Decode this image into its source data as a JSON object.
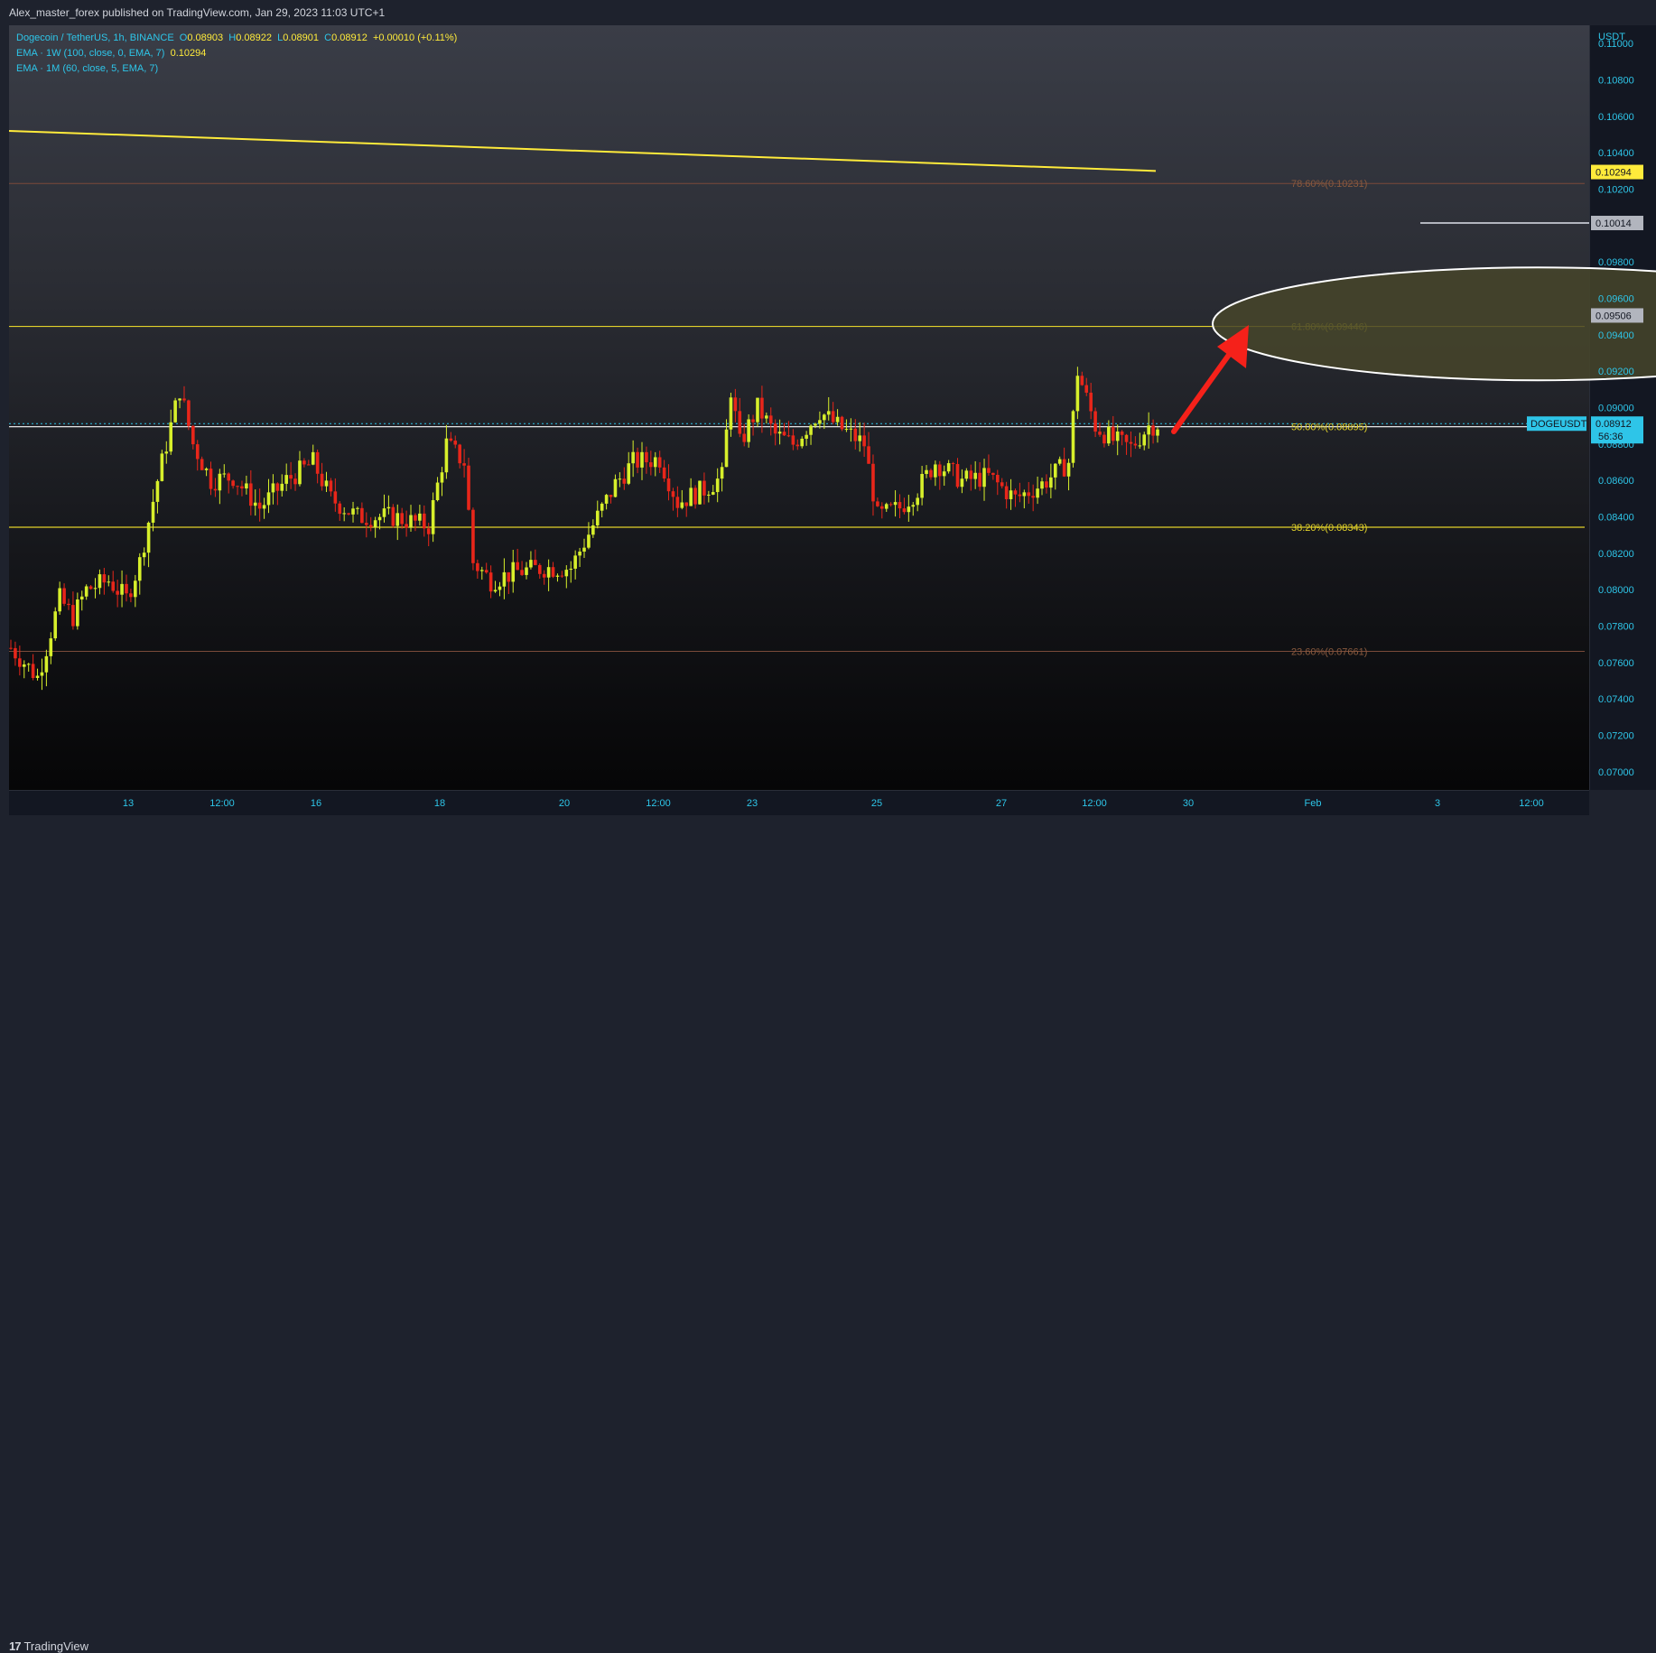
{
  "header": {
    "publisher_text": "Alex_master_forex published on TradingView.com, Jan 29, 2023 11:03 UTC+1"
  },
  "footer": {
    "logo_text": "TradingView",
    "logo_mark": "17"
  },
  "legend": {
    "symbol": "Dogecoin / TetherUS, 1h, BINANCE",
    "open_label": "O",
    "open": "0.08903",
    "high_label": "H",
    "high": "0.08922",
    "low_label": "L",
    "low": "0.08901",
    "close_label": "C",
    "close": "0.08912",
    "change": "+0.00010 (+0.11%)",
    "ema1_label": "EMA · 1W (100, close, 0, EMA, 7)",
    "ema1_value": "0.10294",
    "ema2_label": "EMA · 1M (60, close, 5, EMA, 7)"
  },
  "colors": {
    "up": "#d7ef2b",
    "down": "#e8261a",
    "fib_yellow": "#e2d22a",
    "fib_dim": "#7a4a3a",
    "ema_line": "#ffeb3b",
    "ellipse_fill": "#46452a",
    "arrow": "#f5211a",
    "axis_text": "#2ec5e8",
    "price_tag": "#2ec5e8"
  },
  "chart_data": {
    "type": "candlestick",
    "symbol": "DOGEUSDT",
    "ylim": [
      0.069,
      0.111
    ],
    "y_unit": "USDT",
    "y_ticks": [
      "0.11000",
      "0.10800",
      "0.10600",
      "0.10400",
      "0.10200",
      "0.09800",
      "0.09600",
      "0.09400",
      "0.09200",
      "0.09000",
      "0.08800",
      "0.08600",
      "0.08400",
      "0.08200",
      "0.08000",
      "0.07800",
      "0.07600",
      "0.07400",
      "0.07200",
      "0.07000"
    ],
    "x_ticks": [
      "13",
      "12:00",
      "16",
      "18",
      "20",
      "12:00",
      "23",
      "25",
      "27",
      "12:00",
      "30",
      "Feb",
      "3",
      "12:00"
    ],
    "fib_levels": [
      {
        "label": "78.60%(0.10231)",
        "value": 0.10231
      },
      {
        "label": "61.80%(0.09446)",
        "value": 0.09446
      },
      {
        "label": "50.00%(0.08895)",
        "value": 0.08895
      },
      {
        "label": "38.20%(0.08343)",
        "value": 0.08343
      },
      {
        "label": "23.60%(0.07661)",
        "value": 0.07661
      }
    ],
    "ema_1w_line": {
      "start_value": 0.1052,
      "end_value": 0.103
    },
    "horizontal_line": {
      "value": 0.10014
    },
    "target_zone": {
      "low": 0.0915,
      "high": 0.0977
    },
    "price_tags": [
      {
        "label": "0.10294",
        "value": 0.10294,
        "style": "yellow"
      },
      {
        "label": "0.10014",
        "value": 0.10014,
        "style": "gray"
      },
      {
        "label": "0.09506",
        "value": 0.09506,
        "style": "gray"
      },
      {
        "label": "0.08912",
        "value": 0.08912,
        "style": "blue"
      }
    ],
    "current": {
      "symbol_tag": "DOGEUSDT",
      "price": "0.08912",
      "countdown": "56:36"
    },
    "close_path": [
      {
        "t": 0,
        "close": 0.0768
      },
      {
        "t": 3,
        "close": 0.076
      },
      {
        "t": 6,
        "close": 0.0752
      },
      {
        "t": 8,
        "close": 0.0768
      },
      {
        "t": 11,
        "close": 0.0795
      },
      {
        "t": 14,
        "close": 0.0785
      },
      {
        "t": 17,
        "close": 0.08
      },
      {
        "t": 22,
        "close": 0.0805
      },
      {
        "t": 26,
        "close": 0.0795
      },
      {
        "t": 29,
        "close": 0.0815
      },
      {
        "t": 33,
        "close": 0.086
      },
      {
        "t": 36,
        "close": 0.089
      },
      {
        "t": 38,
        "close": 0.091
      },
      {
        "t": 41,
        "close": 0.088
      },
      {
        "t": 45,
        "close": 0.086
      },
      {
        "t": 50,
        "close": 0.0862
      },
      {
        "t": 56,
        "close": 0.0845
      },
      {
        "t": 62,
        "close": 0.086
      },
      {
        "t": 68,
        "close": 0.087
      },
      {
        "t": 72,
        "close": 0.085
      },
      {
        "t": 78,
        "close": 0.084
      },
      {
        "t": 86,
        "close": 0.084
      },
      {
        "t": 94,
        "close": 0.0835
      },
      {
        "t": 98,
        "close": 0.088
      },
      {
        "t": 102,
        "close": 0.087
      },
      {
        "t": 104,
        "close": 0.0815
      },
      {
        "t": 108,
        "close": 0.0805
      },
      {
        "t": 114,
        "close": 0.081
      },
      {
        "t": 120,
        "close": 0.0812
      },
      {
        "t": 126,
        "close": 0.0812
      },
      {
        "t": 132,
        "close": 0.084
      },
      {
        "t": 136,
        "close": 0.0858
      },
      {
        "t": 140,
        "close": 0.087
      },
      {
        "t": 146,
        "close": 0.0872
      },
      {
        "t": 150,
        "close": 0.0848
      },
      {
        "t": 156,
        "close": 0.0855
      },
      {
        "t": 160,
        "close": 0.0862
      },
      {
        "t": 162,
        "close": 0.091
      },
      {
        "t": 164,
        "close": 0.088
      },
      {
        "t": 168,
        "close": 0.09
      },
      {
        "t": 172,
        "close": 0.0885
      },
      {
        "t": 176,
        "close": 0.088
      },
      {
        "t": 182,
        "close": 0.0898
      },
      {
        "t": 186,
        "close": 0.089
      },
      {
        "t": 192,
        "close": 0.088
      },
      {
        "t": 195,
        "close": 0.084
      },
      {
        "t": 200,
        "close": 0.0845
      },
      {
        "t": 204,
        "close": 0.0855
      },
      {
        "t": 208,
        "close": 0.087
      },
      {
        "t": 214,
        "close": 0.086
      },
      {
        "t": 220,
        "close": 0.0862
      },
      {
        "t": 226,
        "close": 0.085
      },
      {
        "t": 232,
        "close": 0.0858
      },
      {
        "t": 238,
        "close": 0.087
      },
      {
        "t": 240,
        "close": 0.092
      },
      {
        "t": 244,
        "close": 0.089
      },
      {
        "t": 248,
        "close": 0.0882
      },
      {
        "t": 252,
        "close": 0.0878
      },
      {
        "t": 256,
        "close": 0.089
      },
      {
        "t": 258,
        "close": 0.0891
      }
    ]
  }
}
